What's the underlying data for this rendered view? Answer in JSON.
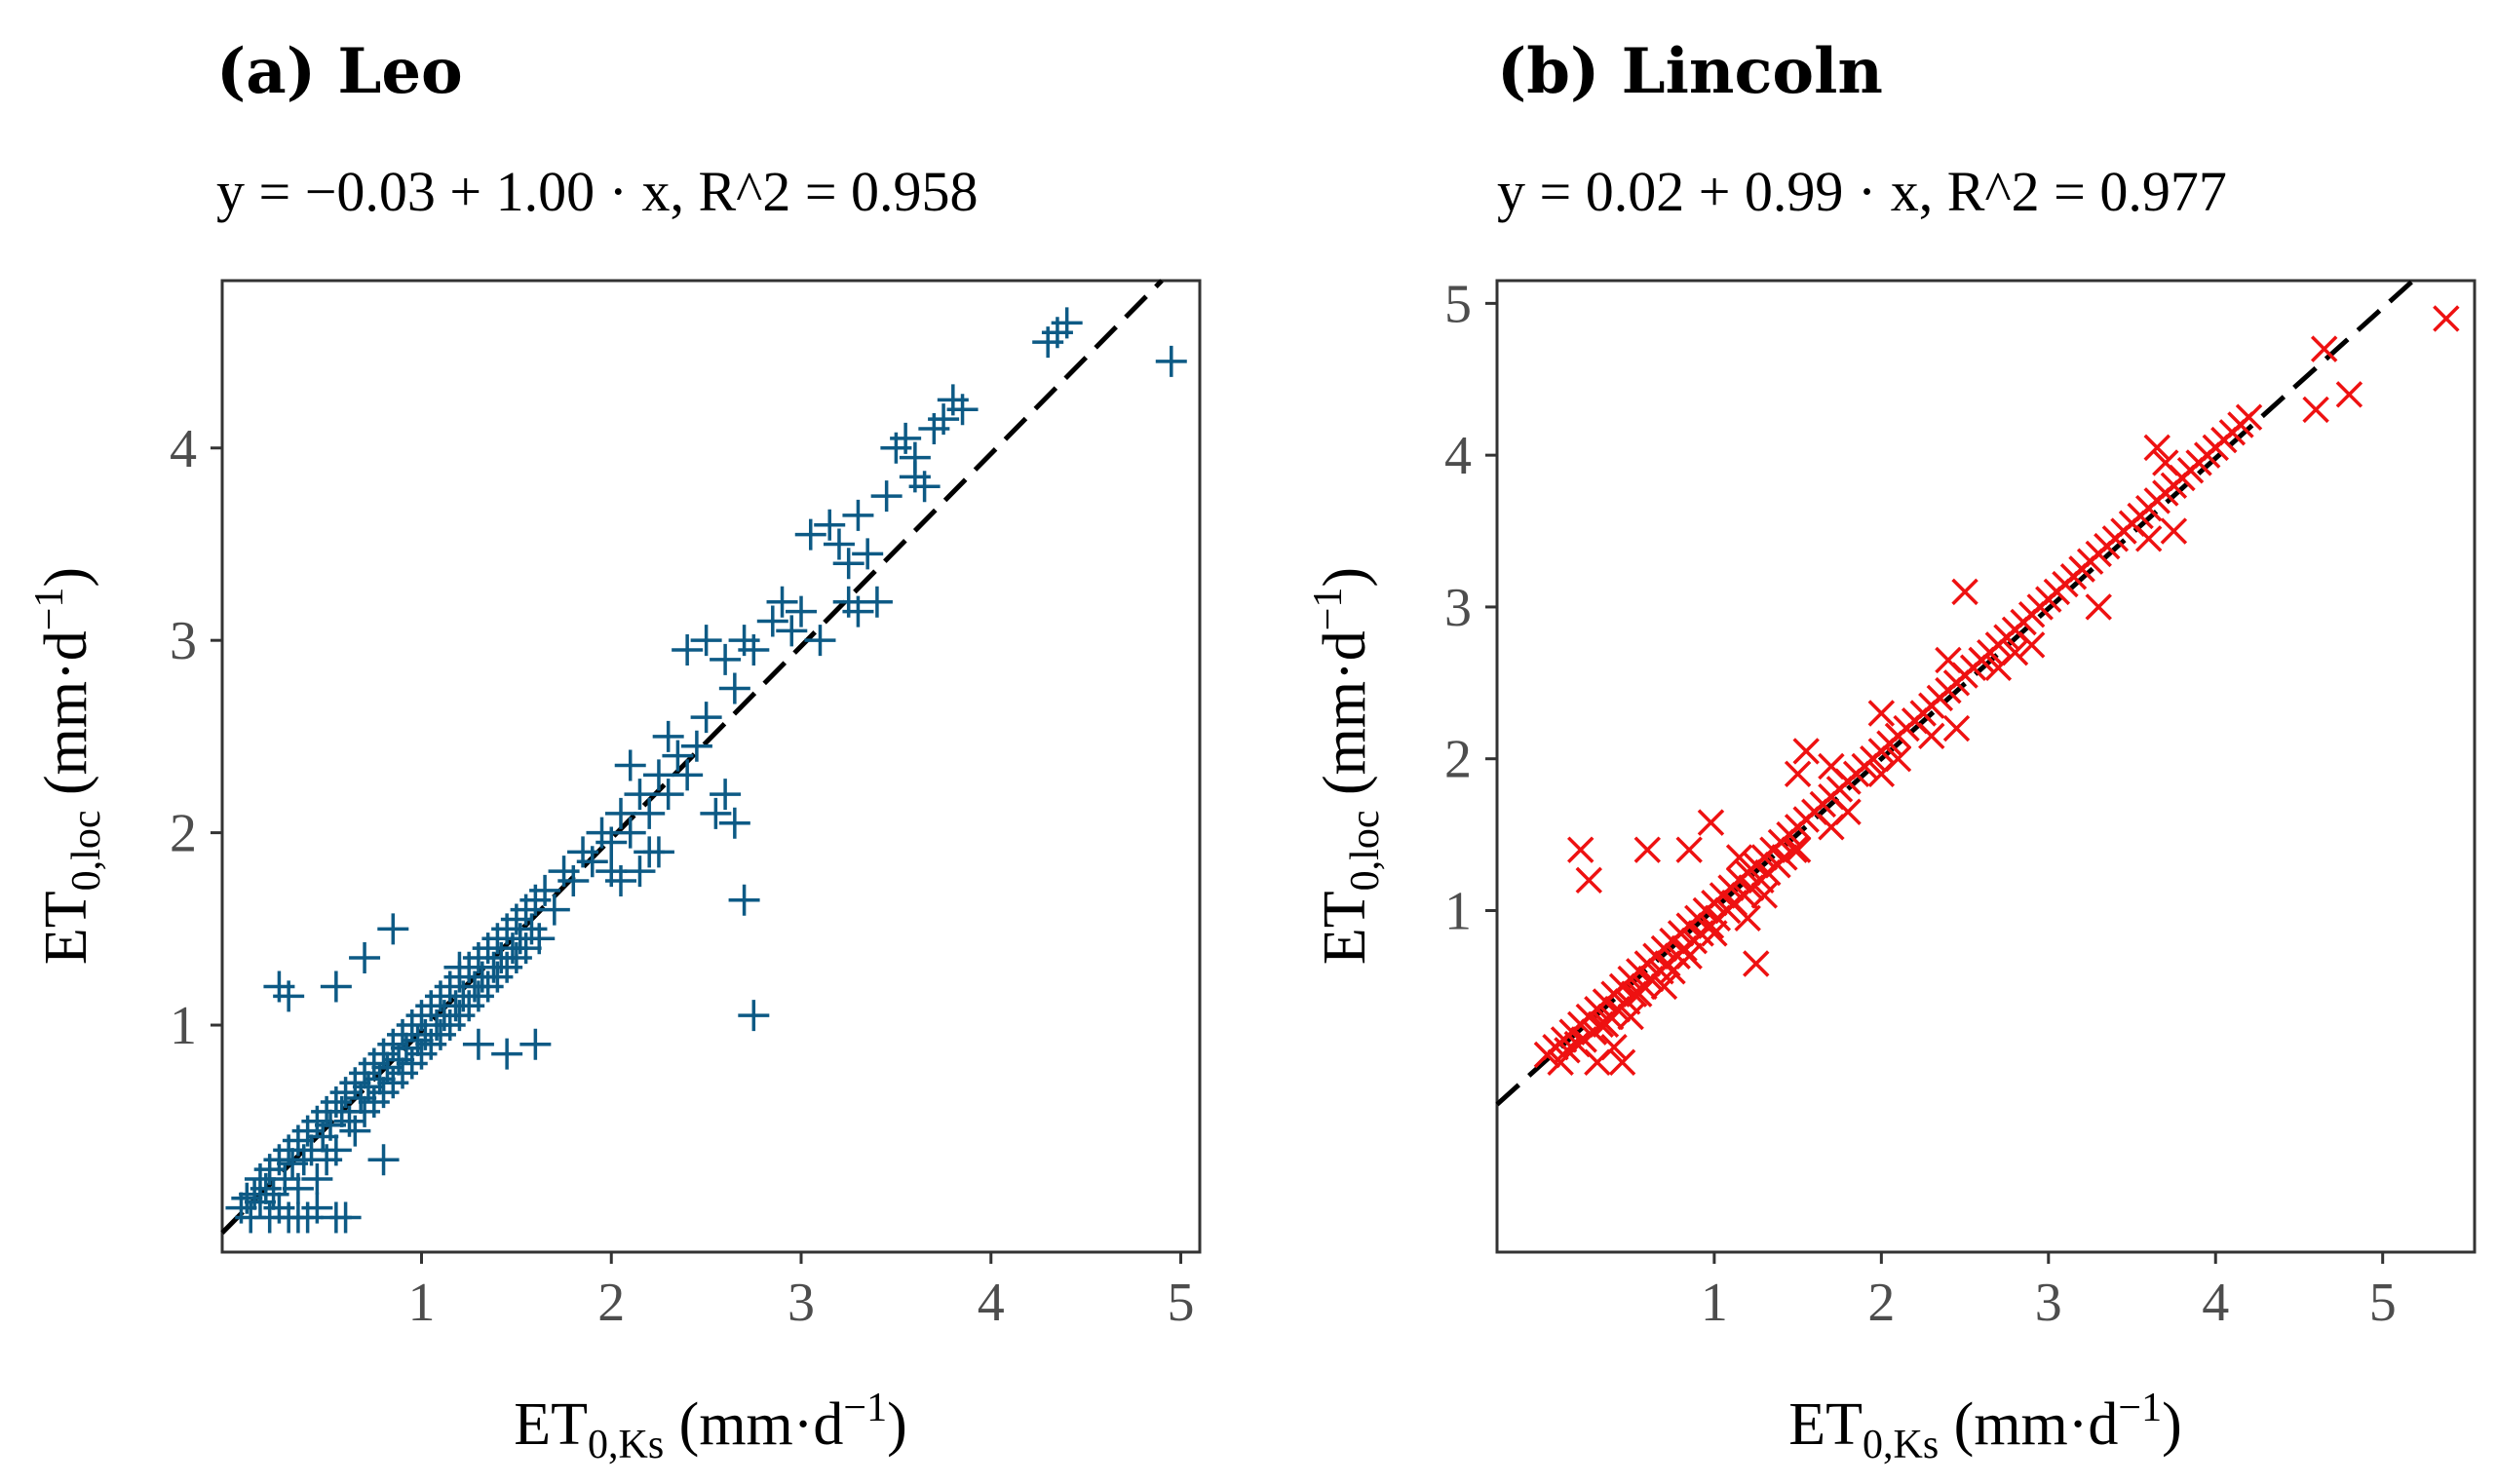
{
  "chart_data": [
    {
      "type": "scatter",
      "title": "(a) Leo",
      "equation": "y = −0.03 + 1.00 · x,  R^2 = 0.958",
      "xlabel": {
        "base": "ET",
        "sub": "0,Ks",
        "units_pre": " (mm·d",
        "sup": "−1",
        "units_post": ")"
      },
      "ylabel": {
        "base": "ET",
        "sub": "0,loc",
        "units_pre": " (mm·d",
        "sup": "−1",
        "units_post": ")"
      },
      "xlim": [
        -0.05,
        5.1
      ],
      "ylim": [
        -0.18,
        4.87
      ],
      "xticks": [
        1,
        2,
        3,
        4,
        5
      ],
      "yticks": [
        1,
        2,
        3,
        4
      ],
      "marker": "plus",
      "color": "#0d5a85",
      "fit": {
        "intercept": -0.03,
        "slope": 1.0
      },
      "points": [
        [
          0.05,
          0.05
        ],
        [
          0.08,
          0.1
        ],
        [
          0.1,
          0.0
        ],
        [
          0.12,
          0.12
        ],
        [
          0.15,
          0.08
        ],
        [
          0.15,
          0.2
        ],
        [
          0.18,
          0.15
        ],
        [
          0.2,
          0.0
        ],
        [
          0.2,
          0.25
        ],
        [
          0.22,
          0.12
        ],
        [
          0.25,
          0.3
        ],
        [
          0.25,
          0.05
        ],
        [
          0.28,
          0.2
        ],
        [
          0.3,
          0.35
        ],
        [
          0.3,
          0.0
        ],
        [
          0.32,
          0.28
        ],
        [
          0.35,
          0.15
        ],
        [
          0.35,
          0.4
        ],
        [
          0.38,
          0.3
        ],
        [
          0.4,
          0.45
        ],
        [
          0.4,
          0.0
        ],
        [
          0.42,
          0.35
        ],
        [
          0.45,
          0.5
        ],
        [
          0.45,
          0.2
        ],
        [
          0.48,
          0.42
        ],
        [
          0.5,
          0.55
        ],
        [
          0.5,
          0.3
        ],
        [
          0.52,
          0.48
        ],
        [
          0.55,
          0.6
        ],
        [
          0.55,
          0.35
        ],
        [
          0.58,
          0.55
        ],
        [
          0.6,
          0.65
        ],
        [
          0.6,
          0.0
        ],
        [
          0.62,
          0.5
        ],
        [
          0.65,
          0.7
        ],
        [
          0.65,
          0.45
        ],
        [
          0.68,
          0.62
        ],
        [
          0.7,
          0.75
        ],
        [
          0.7,
          0.55
        ],
        [
          0.72,
          0.68
        ],
        [
          0.75,
          0.8
        ],
        [
          0.75,
          0.6
        ],
        [
          0.78,
          0.72
        ],
        [
          0.8,
          0.85
        ],
        [
          0.8,
          0.65
        ],
        [
          0.82,
          0.78
        ],
        [
          0.85,
          0.9
        ],
        [
          0.85,
          0.7
        ],
        [
          0.88,
          0.82
        ],
        [
          0.9,
          0.95
        ],
        [
          0.9,
          0.75
        ],
        [
          0.92,
          0.88
        ],
        [
          0.95,
          1.0
        ],
        [
          0.95,
          0.8
        ],
        [
          0.98,
          0.92
        ],
        [
          1.0,
          1.05
        ],
        [
          1.0,
          0.85
        ],
        [
          1.02,
          0.95
        ],
        [
          1.05,
          1.1
        ],
        [
          1.05,
          0.9
        ],
        [
          1.08,
          1.0
        ],
        [
          1.1,
          1.15
        ],
        [
          1.1,
          0.95
        ],
        [
          1.12,
          1.05
        ],
        [
          1.15,
          1.2
        ],
        [
          1.15,
          1.0
        ],
        [
          1.18,
          1.1
        ],
        [
          1.2,
          1.25
        ],
        [
          1.2,
          1.05
        ],
        [
          1.22,
          1.15
        ],
        [
          1.25,
          1.3
        ],
        [
          1.25,
          1.1
        ],
        [
          1.28,
          1.2
        ],
        [
          1.3,
          1.35
        ],
        [
          1.3,
          1.15
        ],
        [
          1.32,
          1.25
        ],
        [
          1.35,
          1.4
        ],
        [
          1.35,
          1.2
        ],
        [
          1.38,
          1.3
        ],
        [
          1.4,
          1.45
        ],
        [
          1.4,
          1.25
        ],
        [
          1.42,
          1.35
        ],
        [
          1.45,
          1.5
        ],
        [
          1.45,
          1.3
        ],
        [
          1.48,
          1.4
        ],
        [
          1.5,
          1.55
        ],
        [
          1.5,
          1.35
        ],
        [
          1.52,
          1.45
        ],
        [
          1.55,
          1.6
        ],
        [
          1.55,
          1.4
        ],
        [
          1.58,
          1.5
        ],
        [
          1.6,
          1.65
        ],
        [
          1.62,
          1.45
        ],
        [
          1.65,
          1.7
        ],
        [
          1.7,
          1.6
        ],
        [
          1.75,
          1.8
        ],
        [
          1.8,
          1.75
        ],
        [
          1.85,
          1.9
        ],
        [
          1.9,
          1.85
        ],
        [
          1.95,
          2.0
        ],
        [
          2.0,
          1.95
        ],
        [
          2.05,
          2.1
        ],
        [
          2.1,
          2.0
        ],
        [
          2.15,
          2.2
        ],
        [
          2.2,
          2.1
        ],
        [
          2.25,
          2.3
        ],
        [
          2.3,
          2.2
        ],
        [
          2.35,
          2.4
        ],
        [
          2.4,
          2.3
        ],
        [
          2.45,
          2.45
        ],
        [
          2.15,
          1.8
        ],
        [
          2.2,
          1.9
        ],
        [
          2.05,
          1.75
        ],
        [
          2.3,
          2.5
        ],
        [
          2.5,
          2.6
        ],
        [
          2.6,
          2.2
        ],
        [
          2.65,
          2.05
        ],
        [
          2.7,
          1.65
        ],
        [
          2.75,
          1.05
        ],
        [
          2.1,
          2.35
        ],
        [
          2.4,
          2.95
        ],
        [
          2.5,
          3.0
        ],
        [
          2.6,
          2.9
        ],
        [
          2.7,
          3.0
        ],
        [
          2.85,
          3.1
        ],
        [
          2.9,
          3.2
        ],
        [
          2.95,
          3.05
        ],
        [
          3.0,
          3.15
        ],
        [
          2.75,
          2.95
        ],
        [
          2.65,
          2.75
        ],
        [
          3.05,
          3.55
        ],
        [
          3.15,
          3.6
        ],
        [
          3.2,
          3.5
        ],
        [
          3.25,
          3.4
        ],
        [
          3.3,
          3.65
        ],
        [
          3.35,
          3.45
        ],
        [
          3.25,
          3.2
        ],
        [
          3.3,
          3.15
        ],
        [
          3.4,
          3.2
        ],
        [
          3.1,
          3.0
        ],
        [
          3.45,
          3.75
        ],
        [
          3.5,
          4.0
        ],
        [
          3.55,
          4.05
        ],
        [
          3.6,
          3.85
        ],
        [
          3.65,
          3.8
        ],
        [
          3.7,
          4.1
        ],
        [
          3.75,
          4.15
        ],
        [
          3.8,
          4.25
        ],
        [
          3.85,
          4.2
        ],
        [
          3.6,
          3.95
        ],
        [
          4.3,
          4.55
        ],
        [
          4.35,
          4.6
        ],
        [
          4.4,
          4.65
        ],
        [
          4.95,
          4.45
        ],
        [
          0.25,
          1.2
        ],
        [
          0.3,
          1.15
        ],
        [
          0.55,
          1.2
        ],
        [
          0.7,
          1.35
        ],
        [
          0.85,
          1.5
        ],
        [
          1.2,
          1.3
        ],
        [
          0.35,
          0.0
        ],
        [
          0.45,
          0.05
        ],
        [
          0.55,
          0.0
        ],
        [
          0.8,
          0.3
        ],
        [
          1.3,
          0.9
        ],
        [
          1.45,
          0.85
        ],
        [
          1.6,
          0.9
        ],
        [
          2.0,
          1.8
        ],
        [
          2.25,
          1.9
        ],
        [
          2.55,
          2.1
        ]
      ]
    },
    {
      "type": "scatter",
      "title": "(b) Lincoln",
      "equation": "y = 0.02 + 0.99 · x,  R^2 = 0.977",
      "xlabel": {
        "base": "ET",
        "sub": "0,Ks",
        "units_pre": " (mm·d",
        "sup": "−1",
        "units_post": ")"
      },
      "ylabel": {
        "base": "ET",
        "sub": "0,loc",
        "units_pre": " (mm·d",
        "sup": "−1",
        "units_post": ")"
      },
      "xlim": [
        -0.3,
        5.55
      ],
      "ylim": [
        -1.25,
        5.15
      ],
      "xticks": [
        1,
        2,
        3,
        4,
        5
      ],
      "yticks": [
        1,
        2,
        3,
        4,
        5
      ],
      "marker": "cross",
      "color": "#ee1111",
      "fit": {
        "intercept": 0.02,
        "slope": 0.99
      },
      "points": [
        [
          0.0,
          0.05
        ],
        [
          0.05,
          0.1
        ],
        [
          0.08,
          0.0
        ],
        [
          0.1,
          0.15
        ],
        [
          0.12,
          0.08
        ],
        [
          0.15,
          0.2
        ],
        [
          0.18,
          0.12
        ],
        [
          0.2,
          0.25
        ],
        [
          0.22,
          0.15
        ],
        [
          0.25,
          0.3
        ],
        [
          0.28,
          0.2
        ],
        [
          0.3,
          0.35
        ],
        [
          0.32,
          0.25
        ],
        [
          0.35,
          0.4
        ],
        [
          0.38,
          0.3
        ],
        [
          0.4,
          0.45
        ],
        [
          0.42,
          0.35
        ],
        [
          0.45,
          0.5
        ],
        [
          0.48,
          0.4
        ],
        [
          0.5,
          0.55
        ],
        [
          0.52,
          0.45
        ],
        [
          0.55,
          0.6
        ],
        [
          0.58,
          0.5
        ],
        [
          0.6,
          0.65
        ],
        [
          0.62,
          0.55
        ],
        [
          0.65,
          0.7
        ],
        [
          0.68,
          0.6
        ],
        [
          0.7,
          0.75
        ],
        [
          0.72,
          0.65
        ],
        [
          0.75,
          0.8
        ],
        [
          0.78,
          0.7
        ],
        [
          0.8,
          0.85
        ],
        [
          0.82,
          0.75
        ],
        [
          0.85,
          0.9
        ],
        [
          0.88,
          0.8
        ],
        [
          0.9,
          0.95
        ],
        [
          0.92,
          0.85
        ],
        [
          0.95,
          1.0
        ],
        [
          0.98,
          0.9
        ],
        [
          1.0,
          1.05
        ],
        [
          1.02,
          0.95
        ],
        [
          1.05,
          1.1
        ],
        [
          1.08,
          1.0
        ],
        [
          1.1,
          1.15
        ],
        [
          1.12,
          1.05
        ],
        [
          1.15,
          1.2
        ],
        [
          1.18,
          1.1
        ],
        [
          1.2,
          1.25
        ],
        [
          1.22,
          1.15
        ],
        [
          1.25,
          1.3
        ],
        [
          1.28,
          1.2
        ],
        [
          1.3,
          1.35
        ],
        [
          1.32,
          1.25
        ],
        [
          1.35,
          1.4
        ],
        [
          1.38,
          1.3
        ],
        [
          1.4,
          1.45
        ],
        [
          1.42,
          1.35
        ],
        [
          1.45,
          1.5
        ],
        [
          1.48,
          1.4
        ],
        [
          1.5,
          1.55
        ],
        [
          1.55,
          1.6
        ],
        [
          1.6,
          1.65
        ],
        [
          1.65,
          1.7
        ],
        [
          1.7,
          1.75
        ],
        [
          1.75,
          1.8
        ],
        [
          1.8,
          1.85
        ],
        [
          1.85,
          1.9
        ],
        [
          1.9,
          1.95
        ],
        [
          1.95,
          2.0
        ],
        [
          2.0,
          2.05
        ],
        [
          2.05,
          2.1
        ],
        [
          2.1,
          2.15
        ],
        [
          2.15,
          2.2
        ],
        [
          2.2,
          2.25
        ],
        [
          2.25,
          2.3
        ],
        [
          2.3,
          2.35
        ],
        [
          2.35,
          2.4
        ],
        [
          2.4,
          2.45
        ],
        [
          2.45,
          2.5
        ],
        [
          2.5,
          2.55
        ],
        [
          2.55,
          2.6
        ],
        [
          2.6,
          2.65
        ],
        [
          2.65,
          2.7
        ],
        [
          2.7,
          2.75
        ],
        [
          2.75,
          2.8
        ],
        [
          2.8,
          2.85
        ],
        [
          2.85,
          2.9
        ],
        [
          2.9,
          2.95
        ],
        [
          2.95,
          3.0
        ],
        [
          3.0,
          3.05
        ],
        [
          3.05,
          3.1
        ],
        [
          3.1,
          3.15
        ],
        [
          3.15,
          3.2
        ],
        [
          3.2,
          3.25
        ],
        [
          3.25,
          3.3
        ],
        [
          3.3,
          3.35
        ],
        [
          3.35,
          3.4
        ],
        [
          3.4,
          3.45
        ],
        [
          3.45,
          3.5
        ],
        [
          3.5,
          3.55
        ],
        [
          3.55,
          3.6
        ],
        [
          3.6,
          3.65
        ],
        [
          3.65,
          3.7
        ],
        [
          3.7,
          3.75
        ],
        [
          3.75,
          3.8
        ],
        [
          3.8,
          3.85
        ],
        [
          3.85,
          3.9
        ],
        [
          3.9,
          3.95
        ],
        [
          3.95,
          4.0
        ],
        [
          4.0,
          4.05
        ],
        [
          4.05,
          4.1
        ],
        [
          4.1,
          4.15
        ],
        [
          4.15,
          4.2
        ],
        [
          4.2,
          4.25
        ],
        [
          3.65,
          4.05
        ],
        [
          3.7,
          3.95
        ],
        [
          3.75,
          3.5
        ],
        [
          3.6,
          3.45
        ],
        [
          3.2,
          3.25
        ],
        [
          3.3,
          3.0
        ],
        [
          2.6,
          2.65
        ],
        [
          2.7,
          2.6
        ],
        [
          2.8,
          2.7
        ],
        [
          2.9,
          2.75
        ],
        [
          2.45,
          2.2
        ],
        [
          2.3,
          2.15
        ],
        [
          2.1,
          2.0
        ],
        [
          2.0,
          1.9
        ],
        [
          1.8,
          1.65
        ],
        [
          1.7,
          1.55
        ],
        [
          1.5,
          1.4
        ],
        [
          1.3,
          1.1
        ],
        [
          1.2,
          0.95
        ],
        [
          1.25,
          0.65
        ],
        [
          1.0,
          0.85
        ],
        [
          0.85,
          0.7
        ],
        [
          0.7,
          0.5
        ],
        [
          0.5,
          0.3
        ],
        [
          0.4,
          0.1
        ],
        [
          0.3,
          0.0
        ],
        [
          0.45,
          0.0
        ],
        [
          0.2,
          1.4
        ],
        [
          0.25,
          1.2
        ],
        [
          0.6,
          1.4
        ],
        [
          0.85,
          1.4
        ],
        [
          0.98,
          1.58
        ],
        [
          1.5,
          1.9
        ],
        [
          2.5,
          3.1
        ],
        [
          1.55,
          2.05
        ],
        [
          1.7,
          1.95
        ],
        [
          4.6,
          4.3
        ],
        [
          4.65,
          4.7
        ],
        [
          4.8,
          4.4
        ],
        [
          5.38,
          4.9
        ],
        [
          2.4,
          2.65
        ],
        [
          2.0,
          2.3
        ],
        [
          1.15,
          1.35
        ],
        [
          0.75,
          0.6
        ],
        [
          0.55,
          0.45
        ],
        [
          0.35,
          0.25
        ]
      ]
    }
  ]
}
